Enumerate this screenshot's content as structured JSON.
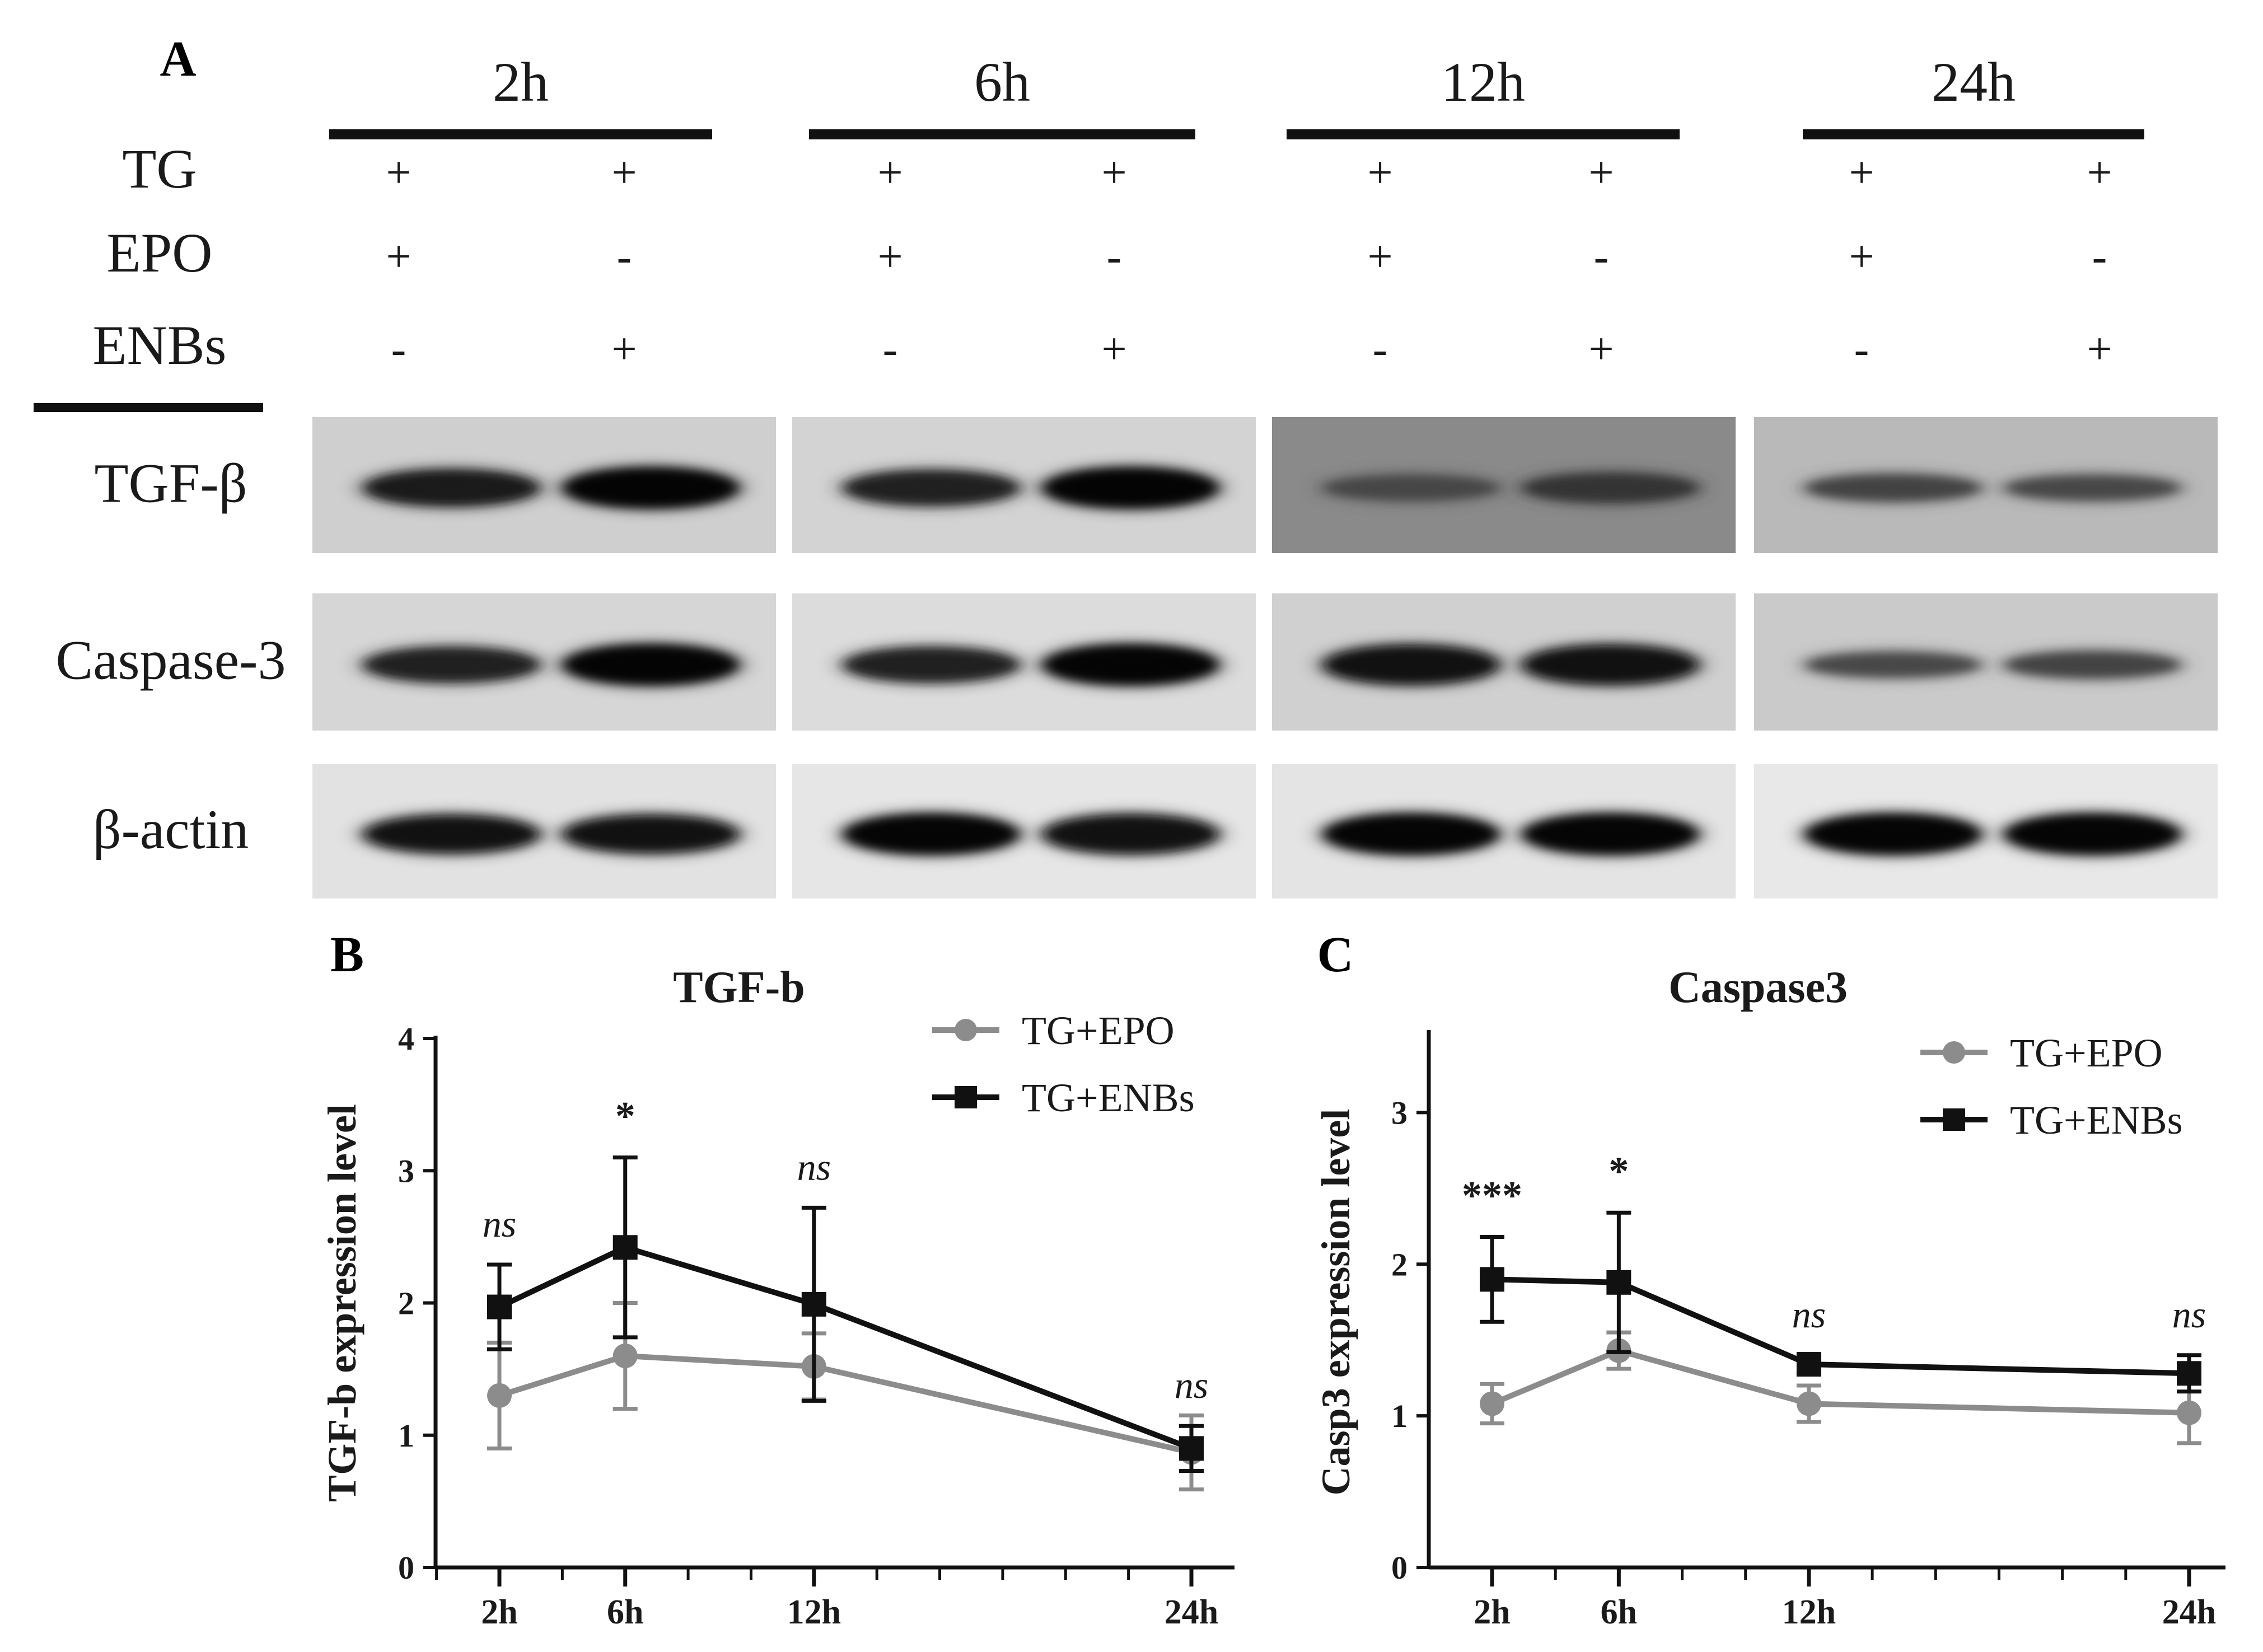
{
  "panels": {
    "a_letter": "A",
    "b_letter": "B",
    "c_letter": "C"
  },
  "blot": {
    "timepoints": [
      "2h",
      "6h",
      "12h",
      "24h"
    ],
    "treatment_rows": [
      {
        "label": "TG",
        "signs": [
          "+",
          "+",
          "+",
          "+",
          "+",
          "+",
          "+",
          "+"
        ]
      },
      {
        "label": "EPO",
        "signs": [
          "+",
          "-",
          "+",
          "-",
          "+",
          "-",
          "+",
          "-"
        ]
      },
      {
        "label": "ENBs",
        "signs": [
          "-",
          "+",
          "-",
          "+",
          "-",
          "+",
          "-",
          "+"
        ]
      }
    ],
    "proteins": [
      {
        "label": "TGF-β",
        "intensity": [
          [
            0.85,
            1.0
          ],
          [
            0.8,
            1.0
          ],
          [
            0.45,
            0.6
          ],
          [
            0.5,
            0.45
          ]
        ]
      },
      {
        "label": "Caspase-3",
        "intensity": [
          [
            0.8,
            1.0
          ],
          [
            0.8,
            1.0
          ],
          [
            0.95,
            0.95
          ],
          [
            0.45,
            0.5
          ]
        ]
      },
      {
        "label": "β-actin",
        "intensity": [
          [
            0.9,
            0.9
          ],
          [
            1.0,
            0.95
          ],
          [
            1.0,
            1.0
          ],
          [
            1.0,
            1.0
          ]
        ]
      }
    ]
  },
  "chart_data": [
    {
      "type": "line",
      "title": "TGF-b",
      "ylabel": "TGF-b expression level",
      "xlabel": "",
      "x": [
        "2h",
        "6h",
        "12h",
        "24h"
      ],
      "x_hours": [
        2,
        6,
        12,
        24
      ],
      "ylim": [
        0,
        4
      ],
      "yticks": [
        0,
        1,
        2,
        3,
        4
      ],
      "series": [
        {
          "name": "TG+EPO",
          "color": "#8c8c8c",
          "marker": "circle",
          "values": [
            1.3,
            1.6,
            1.52,
            0.87
          ],
          "errors": [
            0.4,
            0.4,
            0.25,
            0.28
          ]
        },
        {
          "name": "TG+ENBs",
          "color": "#111111",
          "marker": "square",
          "values": [
            1.97,
            2.42,
            1.99,
            0.9
          ],
          "errors": [
            0.32,
            0.68,
            0.73,
            0.17
          ]
        }
      ],
      "significance": [
        "ns",
        "*",
        "ns",
        "ns"
      ],
      "legend": "top-right"
    },
    {
      "type": "line",
      "title": "Caspase3",
      "ylabel": "Casp3 expression level",
      "xlabel": "",
      "x": [
        "2h",
        "6h",
        "12h",
        "24h"
      ],
      "x_hours": [
        2,
        6,
        12,
        24
      ],
      "ylim": [
        0,
        3.5
      ],
      "yticks": [
        0,
        1,
        2,
        3
      ],
      "series": [
        {
          "name": "TG+EPO",
          "color": "#8c8c8c",
          "marker": "circle",
          "values": [
            1.08,
            1.43,
            1.08,
            1.02
          ],
          "errors": [
            0.13,
            0.12,
            0.12,
            0.2
          ]
        },
        {
          "name": "TG+ENBs",
          "color": "#111111",
          "marker": "square",
          "values": [
            1.9,
            1.88,
            1.34,
            1.28
          ],
          "errors": [
            0.28,
            0.46,
            0.06,
            0.12
          ]
        }
      ],
      "significance": [
        "***",
        "*",
        "ns",
        "ns"
      ],
      "legend": "top-right"
    }
  ]
}
